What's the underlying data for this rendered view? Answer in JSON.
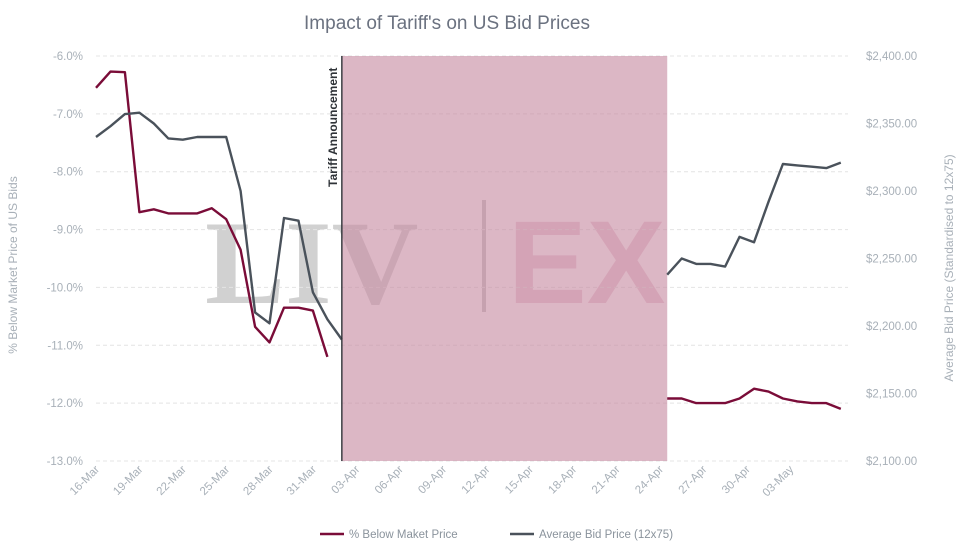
{
  "chart_data": {
    "type": "line",
    "title": "Impact of Tariff's on US Bid Prices",
    "ylabel_left": "% Below Market Price of US Bids",
    "ylabel_right": "Average Bid Price (Standardised to 12x75)",
    "y_left_ticks": [
      "-6.0%",
      "-7.0%",
      "-8.0%",
      "-9.0%",
      "-10.0%",
      "-11.0%",
      "-12.0%",
      "-13.0%"
    ],
    "y_left_lim": [
      -13,
      -6
    ],
    "y_right_ticks": [
      "$2,400.00",
      "$2,350.00",
      "$2,300.00",
      "$2,250.00",
      "$2,200.00",
      "$2,150.00",
      "$2,100.00"
    ],
    "y_right_lim": [
      2100,
      2400
    ],
    "x_tick_labels": [
      "16-Mar",
      "19-Mar",
      "22-Mar",
      "25-Mar",
      "28-Mar",
      "31-Mar",
      "03-Apr",
      "06-Apr",
      "09-Apr",
      "12-Apr",
      "15-Apr",
      "18-Apr",
      "21-Apr",
      "24-Apr",
      "27-Apr",
      "30-Apr",
      "03-May"
    ],
    "x_start": 0,
    "x_end": 52,
    "shaded_region": [
      17,
      39.5
    ],
    "annotation": {
      "text": "Tariff Announcement",
      "x": 17
    },
    "watermark": {
      "left": "LIV",
      "right": "EX"
    },
    "colors": {
      "pct": "#7a0c38",
      "avg": "#4a525b",
      "shade": "#c68aa2",
      "wm_grey": "#c9c9c9",
      "wm_pink": "#d58ea8"
    },
    "series": [
      {
        "name": "% Below Maket Price",
        "axis": "left",
        "segments": [
          [
            [
              0,
              -6.55
            ],
            [
              1,
              -6.27
            ],
            [
              2,
              -6.28
            ],
            [
              3,
              -8.7
            ],
            [
              4,
              -8.65
            ],
            [
              5,
              -8.72
            ],
            [
              6,
              -8.72
            ],
            [
              7,
              -8.72
            ],
            [
              8,
              -8.63
            ],
            [
              9,
              -8.82
            ],
            [
              10,
              -9.35
            ],
            [
              11,
              -10.68
            ],
            [
              12,
              -10.95
            ],
            [
              13,
              -10.35
            ],
            [
              14,
              -10.35
            ],
            [
              15,
              -10.4
            ],
            [
              16,
              -11.2
            ]
          ],
          [
            [
              39.5,
              -11.92
            ],
            [
              40.5,
              -11.92
            ],
            [
              41.5,
              -12.0
            ],
            [
              42.5,
              -12.0
            ],
            [
              43.5,
              -12.0
            ],
            [
              44.5,
              -11.92
            ],
            [
              45.5,
              -11.75
            ],
            [
              46.5,
              -11.8
            ],
            [
              47.5,
              -11.92
            ],
            [
              48.5,
              -11.97
            ],
            [
              49.5,
              -12.0
            ],
            [
              50.5,
              -12.0
            ],
            [
              51.5,
              -12.1
            ]
          ]
        ]
      },
      {
        "name": "Average Bid Price (12x75)",
        "axis": "right",
        "segments": [
          [
            [
              0,
              2340
            ],
            [
              1,
              2348
            ],
            [
              2,
              2357
            ],
            [
              3,
              2358
            ],
            [
              4,
              2350
            ],
            [
              5,
              2339
            ],
            [
              6,
              2338
            ],
            [
              7,
              2340
            ],
            [
              8,
              2340
            ],
            [
              9,
              2340
            ],
            [
              10,
              2300
            ],
            [
              11,
              2210
            ],
            [
              12,
              2202
            ],
            [
              13,
              2280
            ],
            [
              14,
              2278
            ],
            [
              15,
              2225
            ],
            [
              16,
              2205
            ],
            [
              17,
              2190
            ]
          ],
          [
            [
              39.5,
              2238
            ],
            [
              40.5,
              2250
            ],
            [
              41.5,
              2246
            ],
            [
              42.5,
              2246
            ],
            [
              43.5,
              2244
            ],
            [
              44.5,
              2266
            ],
            [
              45.5,
              2262
            ],
            [
              46.5,
              2292
            ],
            [
              47.5,
              2320
            ],
            [
              48.5,
              2319
            ],
            [
              49.5,
              2318
            ],
            [
              50.5,
              2317
            ],
            [
              51.5,
              2321
            ]
          ]
        ]
      }
    ],
    "legend": {
      "position": "bottom"
    }
  }
}
